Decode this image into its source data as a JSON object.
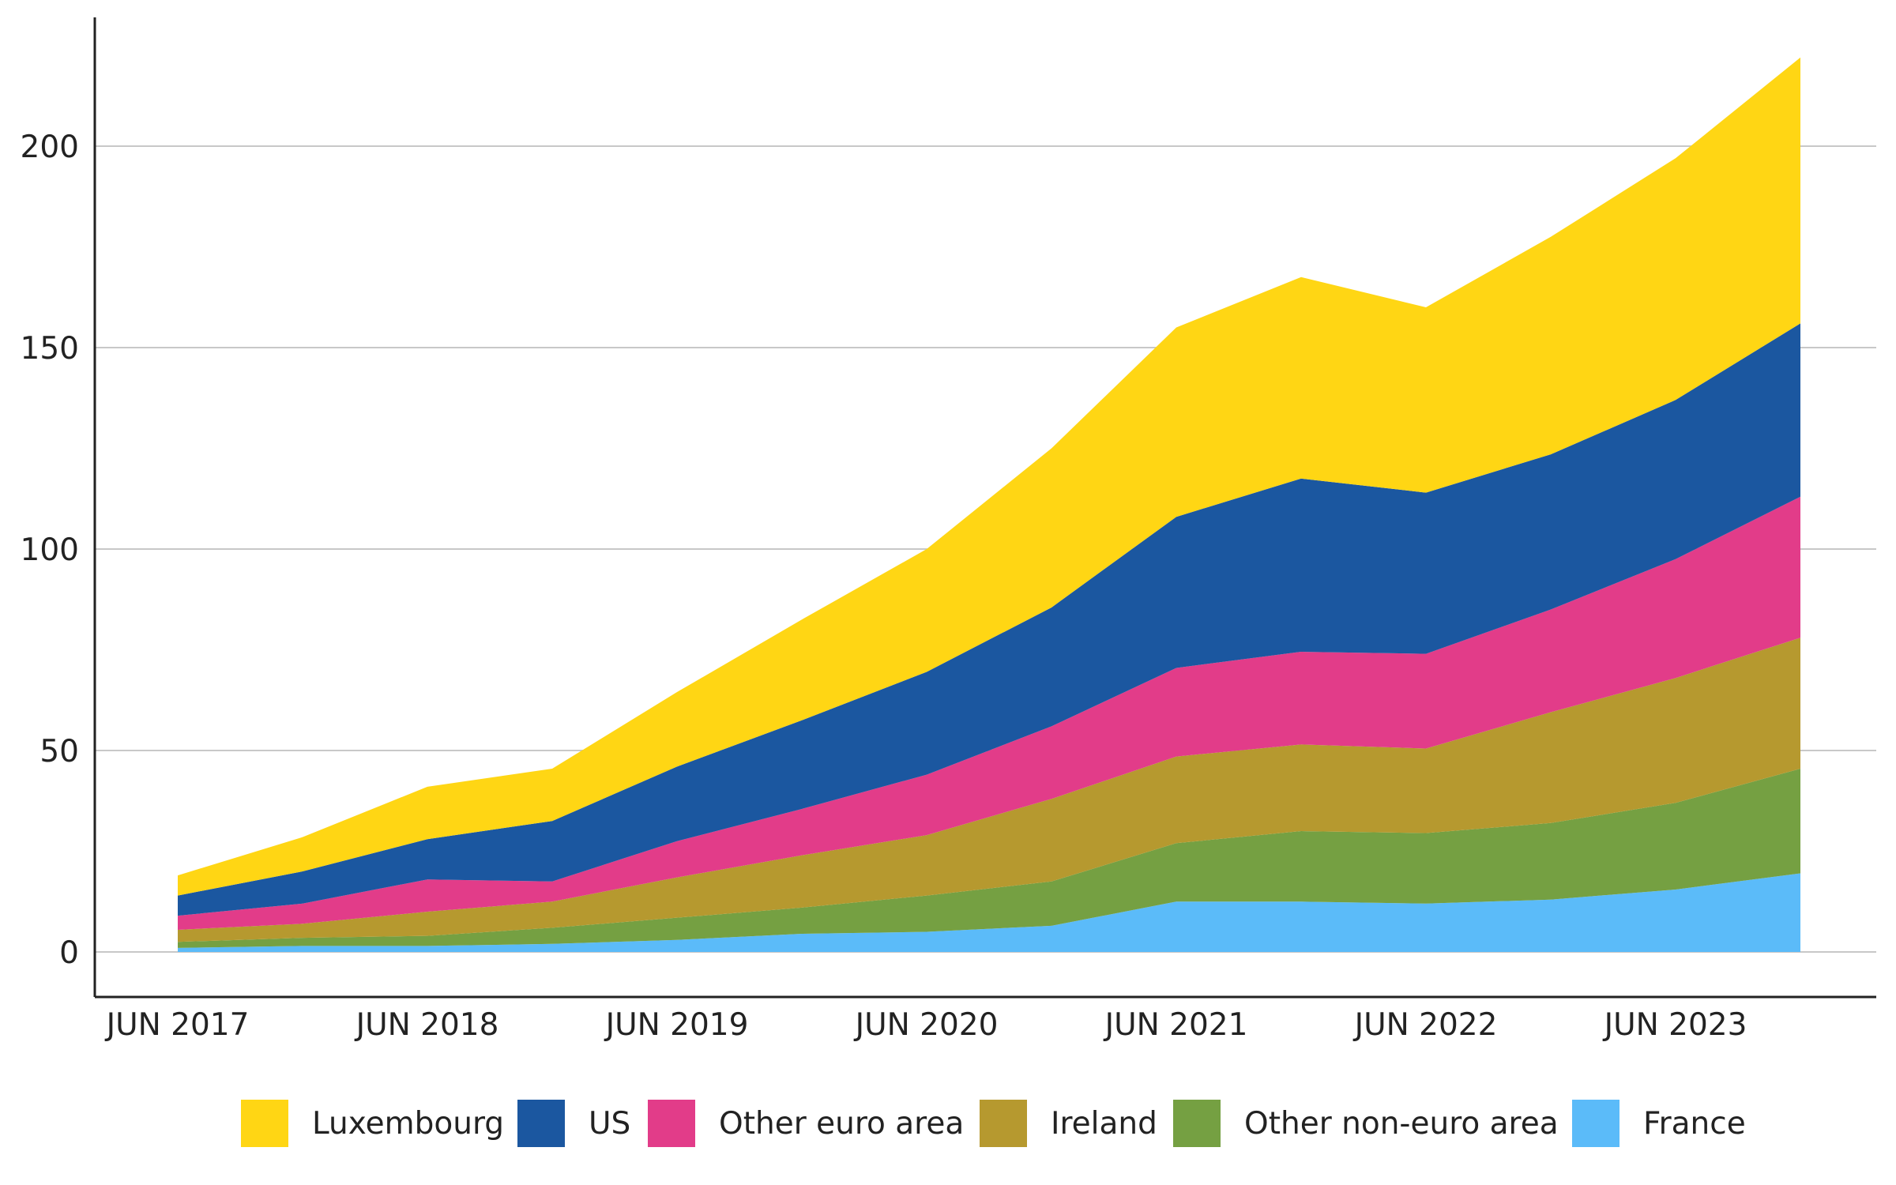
{
  "chart_data": {
    "type": "area",
    "stacked": true,
    "title": "",
    "xlabel": "",
    "ylabel": "",
    "x": [
      "JUN 2017",
      "DEC 2017",
      "JUN 2018",
      "DEC 2018",
      "JUN 2019",
      "DEC 2019",
      "JUN 2020",
      "DEC 2020",
      "JUN 2021",
      "DEC 2021",
      "JUN 2022",
      "DEC 2022",
      "JUN 2023",
      "DEC 2023"
    ],
    "x_tick_labels": [
      "JUN 2017",
      "JUN 2018",
      "JUN 2019",
      "JUN 2020",
      "JUN 2021",
      "JUN 2022",
      "JUN 2023"
    ],
    "ylim": [
      -11,
      232
    ],
    "y_ticks": [
      0,
      50,
      100,
      150,
      200
    ],
    "grid": "horizontal",
    "legend_position": "bottom",
    "series": [
      {
        "name": "France",
        "color": "#5BBBF9",
        "values": [
          1,
          1.5,
          1.5,
          2,
          3,
          4.5,
          5,
          6.5,
          12.5,
          12.5,
          12,
          13,
          15.5,
          19.5
        ]
      },
      {
        "name": "Other non-euro area",
        "color": "#75A042",
        "values": [
          1.5,
          2,
          2.5,
          4,
          5.5,
          6.5,
          9,
          11,
          14.5,
          17.5,
          17.5,
          19,
          21.5,
          26
        ]
      },
      {
        "name": "Ireland",
        "color": "#B6992F",
        "values": [
          3,
          3.5,
          6,
          6.5,
          10,
          13,
          15,
          20.5,
          21.5,
          21.5,
          21,
          27.5,
          31,
          32.5
        ]
      },
      {
        "name": "Other euro area",
        "color": "#E23C89",
        "values": [
          3.5,
          5,
          8,
          5,
          9,
          11.5,
          15,
          18,
          22,
          23,
          23.5,
          25.5,
          29.5,
          35
        ]
      },
      {
        "name": "US",
        "color": "#1B57A0",
        "values": [
          5,
          8,
          10,
          15,
          18.5,
          22,
          25.5,
          29.5,
          37.5,
          43,
          40,
          38.5,
          39.5,
          43
        ]
      },
      {
        "name": "Luxembourg",
        "color": "#FFD614",
        "values": [
          5,
          8.5,
          13,
          13,
          18.5,
          25,
          30.5,
          39.5,
          47,
          50,
          46,
          54,
          60,
          66
        ]
      }
    ],
    "legend_order": [
      "Luxembourg",
      "US",
      "Other euro area",
      "Ireland",
      "Other non-euro area",
      "France"
    ]
  }
}
